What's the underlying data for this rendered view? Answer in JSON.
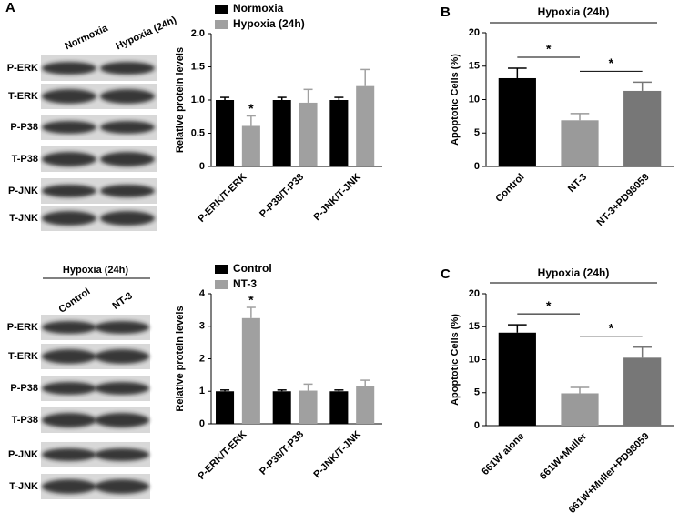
{
  "panels": [
    "A",
    "B",
    "C"
  ],
  "blots": [
    {
      "columns": [
        "Normoxia",
        "Hypoxia (24h)"
      ],
      "rows": [
        "P-ERK",
        "T-ERK",
        "P-P38",
        "T-P38",
        "P-JNK",
        "T-JNK"
      ]
    },
    {
      "header": "Hypoxia (24h)",
      "columns": [
        "Control",
        "NT-3"
      ],
      "rows": [
        "P-ERK",
        "T-ERK",
        "P-P38",
        "T-P38",
        "P-JNK",
        "T-JNK"
      ]
    }
  ],
  "chart_data": [
    {
      "type": "bar",
      "y_label": "Relative protein levels",
      "legend": "top",
      "categories": [
        "P-ERK/T-ERK",
        "P-P38/T-P38",
        "P-JNK/T-JNK"
      ],
      "series": [
        {
          "name": "Normoxia",
          "color": "#000000",
          "values": [
            1.0,
            1.0,
            1.0
          ],
          "errors": [
            0.04,
            0.04,
            0.04
          ]
        },
        {
          "name": "Hypoxia (24h)",
          "color": "#a0a0a0",
          "values": [
            0.61,
            0.96,
            1.21
          ],
          "errors": [
            0.15,
            0.2,
            0.25
          ]
        }
      ],
      "ylim": [
        0,
        2
      ],
      "yticks": [
        0,
        0.5,
        {
          "value": 1,
          "label": "1.0"
        },
        1.5,
        {
          "value": 2,
          "label": "2.0"
        }
      ],
      "annotations": [
        {
          "text": "*",
          "category": "P-ERK/T-ERK",
          "series": "Hypoxia (24h)"
        }
      ]
    },
    {
      "type": "bar",
      "y_label": "Relative protein levels",
      "legend": "top",
      "categories": [
        "P-ERK/T-ERK",
        "P-P38/T-P38",
        "P-JNK/T-JNK"
      ],
      "series": [
        {
          "name": "Control",
          "color": "#000000",
          "values": [
            1.0,
            1.0,
            1.0
          ],
          "errors": [
            0.04,
            0.04,
            0.04
          ]
        },
        {
          "name": "NT-3",
          "color": "#a0a0a0",
          "values": [
            3.25,
            1.02,
            1.17
          ],
          "errors": [
            0.33,
            0.2,
            0.17
          ]
        }
      ],
      "ylim": [
        0,
        4
      ],
      "yticks": [
        0,
        1,
        2,
        3,
        4
      ],
      "annotations": [
        {
          "text": "*",
          "category": "P-ERK/T-ERK",
          "series": "NT-3"
        }
      ]
    },
    {
      "type": "bar",
      "header": "Hypoxia (24h)",
      "y_label": "Apoptotic Cells (%)",
      "categories": [
        "Control",
        "NT-3",
        "NT-3+PD98059"
      ],
      "values": [
        13.2,
        6.9,
        11.3
      ],
      "errors": [
        1.5,
        1.0,
        1.3
      ],
      "colors": [
        "#000000",
        "#9a9a9a",
        "#777777"
      ],
      "ylim": [
        0,
        20
      ],
      "yticks": [
        0,
        5,
        10,
        15,
        20
      ],
      "annotations": [
        {
          "text": "*",
          "from": "Control",
          "to": "NT-3"
        },
        {
          "text": "*",
          "from": "NT-3",
          "to": "NT-3+PD98059"
        }
      ]
    },
    {
      "type": "bar",
      "header": "Hypoxia (24h)",
      "y_label": "Apoptotic Cells (%)",
      "categories": [
        "661W alone",
        "661W+Muller",
        "661W+Muller+PD98059"
      ],
      "values": [
        14.1,
        4.9,
        10.3
      ],
      "errors": [
        1.2,
        0.9,
        1.6
      ],
      "colors": [
        "#000000",
        "#9a9a9a",
        "#777777"
      ],
      "ylim": [
        0,
        20
      ],
      "yticks": [
        0,
        5,
        10,
        15,
        20
      ],
      "annotations": [
        {
          "text": "*",
          "from": "661W alone",
          "to": "661W+Muller"
        },
        {
          "text": "*",
          "from": "661W+Muller",
          "to": "661W+Muller+PD98059"
        }
      ]
    }
  ]
}
